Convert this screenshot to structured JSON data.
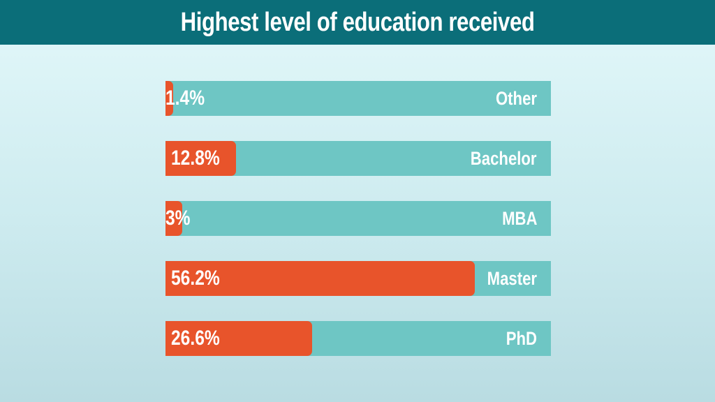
{
  "chart_data": {
    "type": "bar",
    "orientation": "horizontal",
    "title": "Highest level of education received",
    "categories": [
      "Other",
      "Bachelor",
      "MBA",
      "Master",
      "PhD"
    ],
    "values": [
      1.4,
      12.8,
      3,
      56.2,
      26.6
    ],
    "value_labels": [
      "1.4%",
      "12.8%",
      "3%",
      "56.2%",
      "26.6%"
    ],
    "unit": "%",
    "xlim": [
      0,
      70
    ],
    "grid": false,
    "legend": "none",
    "colors": {
      "fill": "#e8542b",
      "track": "#6ec6c4",
      "title_bar": "#0b6e79"
    }
  }
}
